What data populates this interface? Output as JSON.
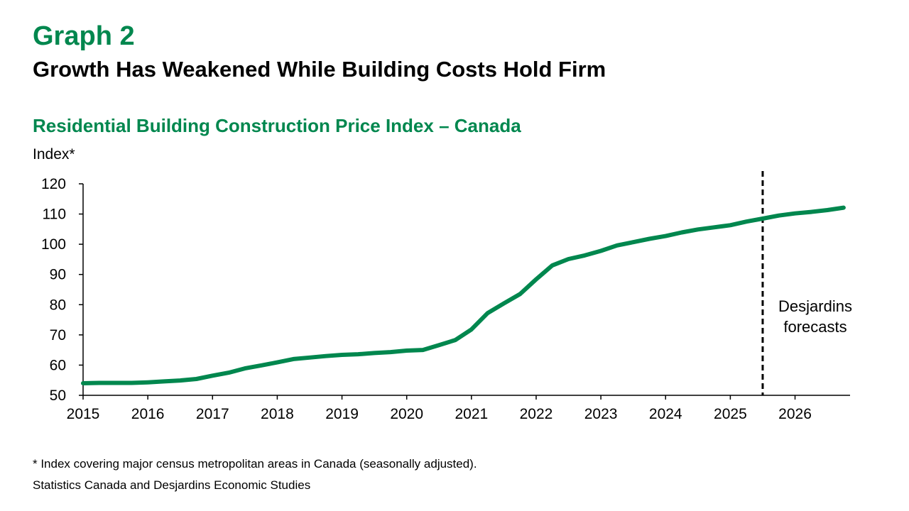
{
  "header": {
    "graph_number": "Graph 2",
    "title": "Growth Has Weakened While Building Costs Hold Firm"
  },
  "chart_data": {
    "type": "line",
    "title": "Residential Building Construction Price Index – Canada",
    "ylabel": "Index*",
    "xlabel": "",
    "ylim": [
      50,
      120
    ],
    "yticks": [
      50,
      60,
      70,
      80,
      90,
      100,
      110,
      120
    ],
    "xlim": [
      2015,
      2026.85
    ],
    "xticks": [
      "2015",
      "2016",
      "2017",
      "2018",
      "2019",
      "2020",
      "2021",
      "2022",
      "2023",
      "2024",
      "2025",
      "2026"
    ],
    "grid": false,
    "legend": "none",
    "line_color": "#00874e",
    "forecast_start": 2025.5,
    "annotation": [
      "Desjardins",
      "forecasts"
    ],
    "series": [
      {
        "x": [
          2015.0,
          2015.25,
          2015.5,
          2015.75,
          2016.0,
          2016.25,
          2016.5,
          2016.75,
          2017.0,
          2017.25,
          2017.5,
          2017.75,
          2018.0,
          2018.25,
          2018.5,
          2018.75,
          2019.0,
          2019.25,
          2019.5,
          2019.75,
          2020.0,
          2020.25,
          2020.5,
          2020.75,
          2021.0,
          2021.25,
          2021.5,
          2021.75,
          2022.0,
          2022.25,
          2022.5,
          2022.75,
          2023.0,
          2023.25,
          2023.5,
          2023.75,
          2024.0,
          2024.25,
          2024.5,
          2024.75,
          2025.0,
          2025.25,
          2025.5,
          2025.75,
          2026.0,
          2026.25,
          2026.5,
          2026.75
        ],
        "y": [
          54.0,
          54.1,
          54.1,
          54.1,
          54.3,
          54.6,
          54.9,
          55.4,
          56.5,
          57.5,
          58.9,
          59.9,
          60.9,
          62.0,
          62.5,
          63.0,
          63.4,
          63.6,
          64.0,
          64.3,
          64.8,
          65.0,
          66.6,
          68.3,
          71.8,
          77.2,
          80.4,
          83.5,
          88.4,
          93.0,
          95.1,
          96.3,
          97.8,
          99.6,
          100.7,
          101.8,
          102.7,
          103.9,
          104.9,
          105.6,
          106.3,
          107.5,
          108.5,
          109.5,
          110.2,
          110.7,
          111.3,
          112.1
        ]
      }
    ]
  },
  "footnote": "* Index covering major census metropolitan areas in Canada (seasonally adjusted).",
  "source": "Statistics Canada and Desjardins Economic Studies"
}
